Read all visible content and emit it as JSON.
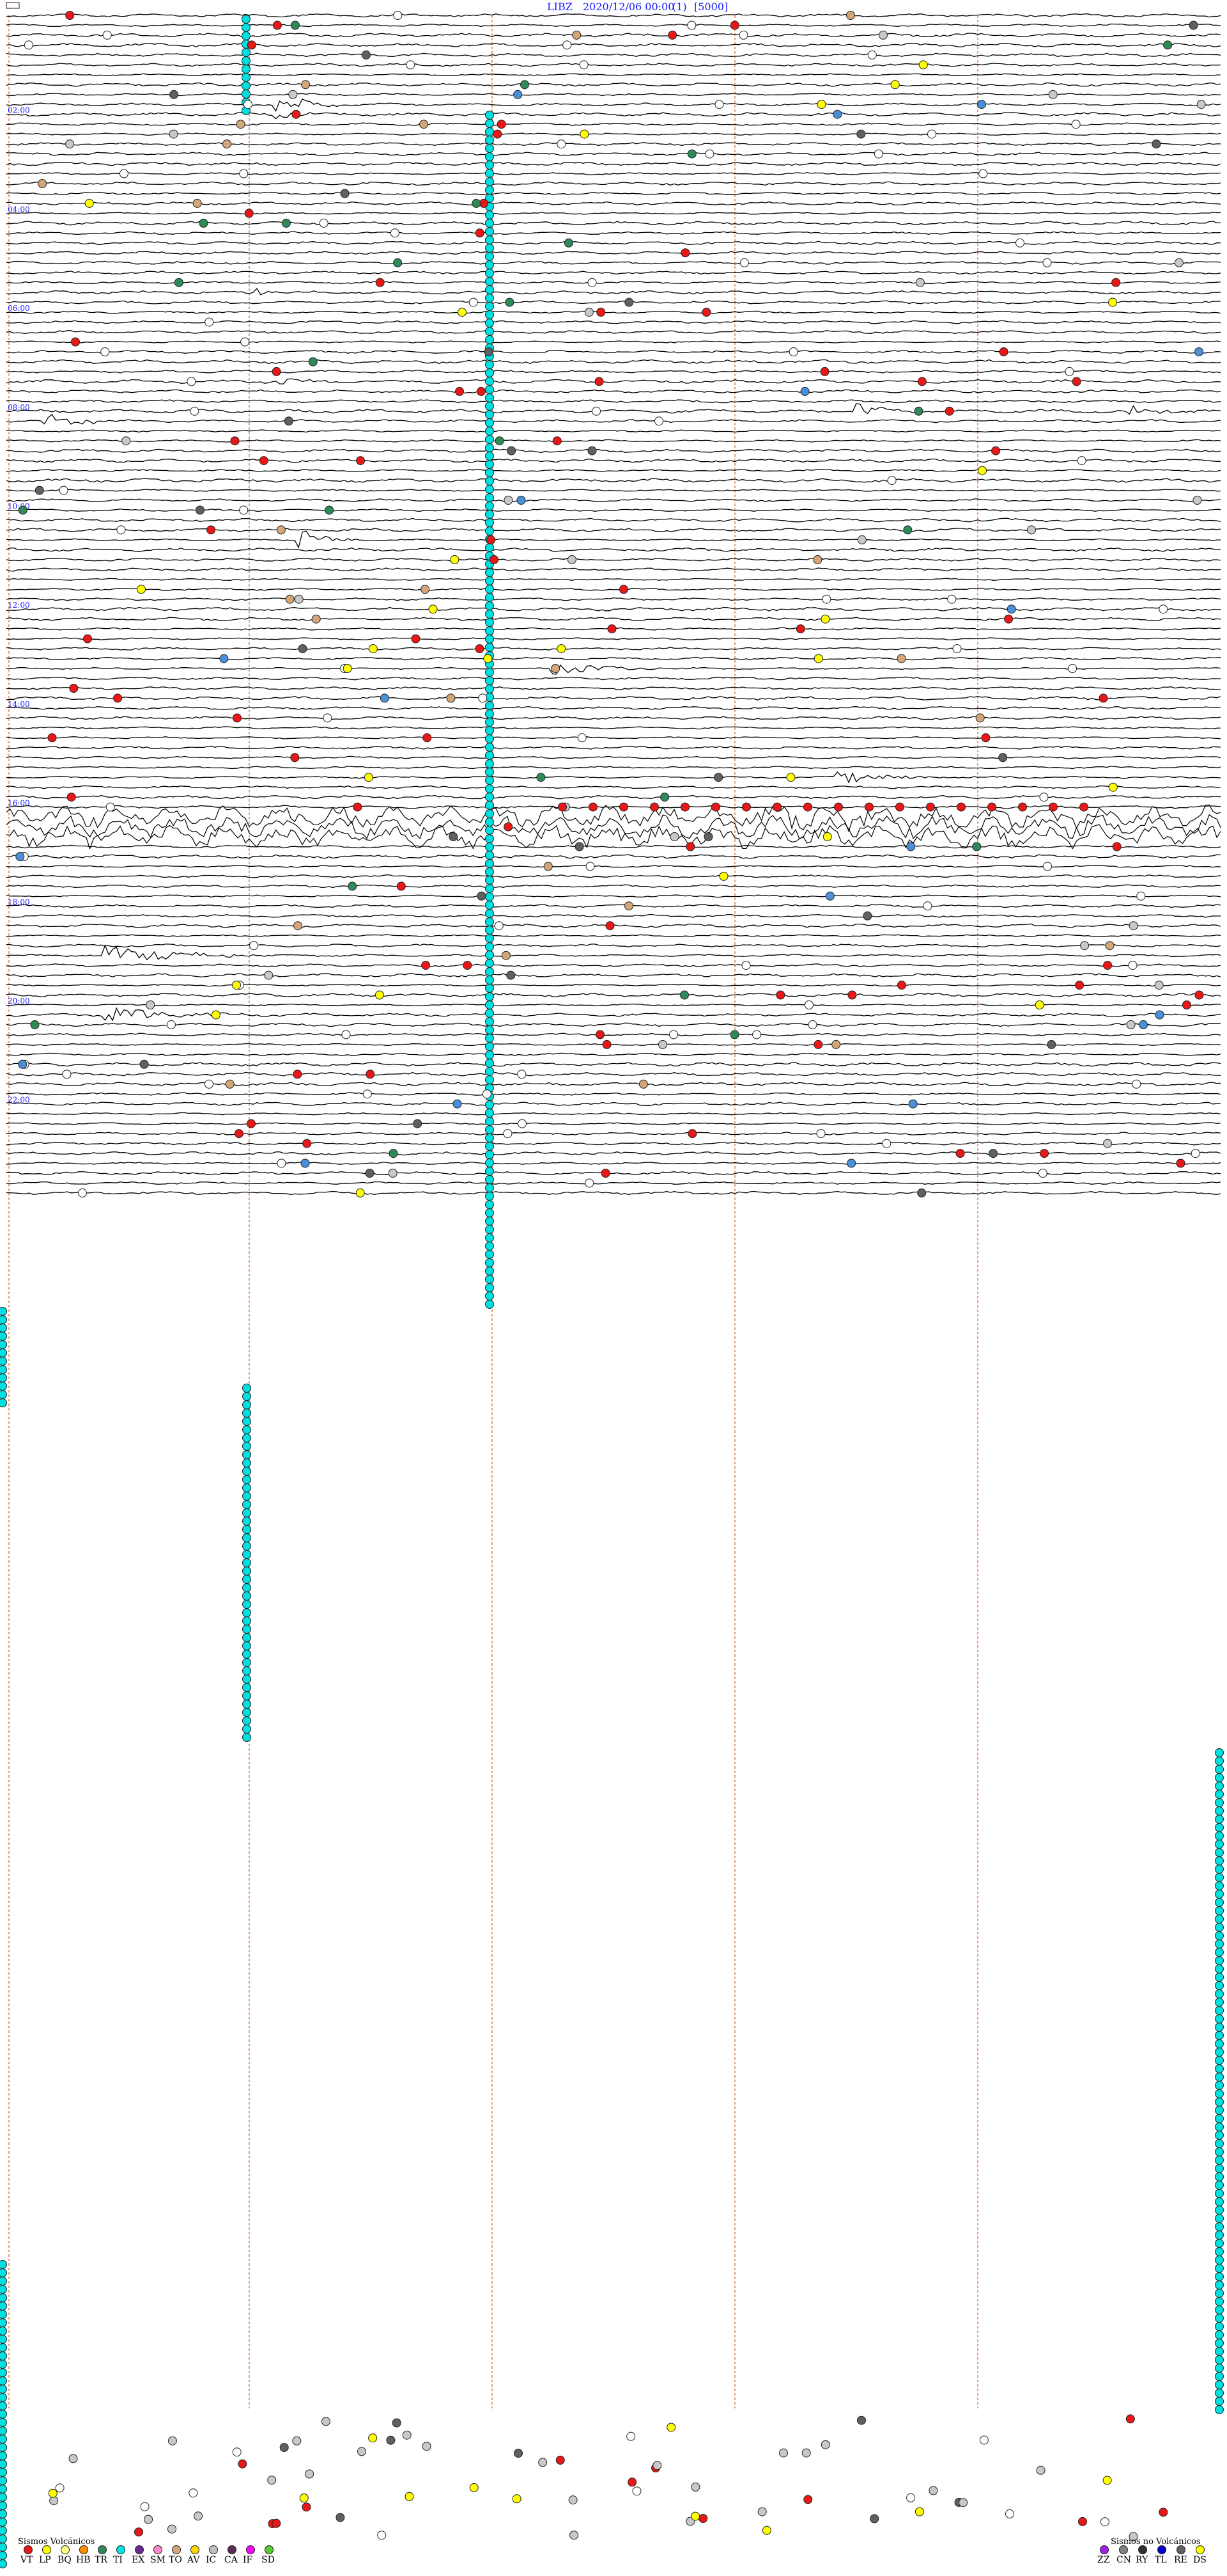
{
  "header": {
    "station": "LIBZ",
    "datetime": "2020/12/06 00:00",
    "channel": "(1)",
    "scale": "[5000]"
  },
  "chart_data": {
    "type": "helicorder",
    "start": "2020/12/06 00:00",
    "hours": 24,
    "traces_per_hour": 5,
    "time_labels": [
      "02:00",
      "04:00",
      "06:00",
      "08:00",
      "10:00",
      "12:00",
      "14:00",
      "16:00",
      "18:00",
      "20:00",
      "22:00"
    ],
    "event_bursts": [
      {
        "trace": 9,
        "pos": 0.22,
        "amp": 22,
        "len": 0.06
      },
      {
        "trace": 10,
        "pos": 0.22,
        "amp": 6,
        "len": 0.08
      },
      {
        "trace": 28,
        "pos": 0.2,
        "amp": 10,
        "len": 0.04
      },
      {
        "trace": 37,
        "pos": 0.22,
        "amp": 6,
        "len": 0.08
      },
      {
        "trace": 41,
        "pos": 0.03,
        "amp": 12,
        "len": 0.08
      },
      {
        "trace": 40,
        "pos": 0.7,
        "amp": 14,
        "len": 0.05
      },
      {
        "trace": 40,
        "pos": 0.92,
        "amp": 8,
        "len": 0.08
      },
      {
        "trace": 53,
        "pos": 0.24,
        "amp": 22,
        "len": 0.05
      },
      {
        "trace": 66,
        "pos": 0.45,
        "amp": 9,
        "len": 0.12
      },
      {
        "trace": 77,
        "pos": 0.68,
        "amp": 12,
        "len": 0.12
      },
      {
        "trace": 81,
        "pos": 0.64,
        "amp": 26,
        "len": 0.12
      },
      {
        "trace": 95,
        "pos": 0.08,
        "amp": 16,
        "len": 0.14
      },
      {
        "trace": 101,
        "pos": 0.08,
        "amp": 16,
        "len": 0.12
      },
      {
        "trace": 120,
        "pos": 0.64,
        "amp": 8,
        "len": 0.1
      },
      {
        "trace": 157,
        "pos": 0.86,
        "amp": 9,
        "len": 0.12
      },
      {
        "trace": 164,
        "pos": 0.85,
        "amp": 8,
        "len": 0.1
      },
      {
        "trace": 179,
        "pos": 0.42,
        "amp": 26,
        "len": 0.04
      }
    ],
    "noisy_traces": [
      81,
      82,
      83
    ],
    "legend_volcanic": {
      "title": "Sismos Volcánicos",
      "items": [
        {
          "label": "VT",
          "color": "#e81818"
        },
        {
          "label": "LP",
          "color": "#ffff00"
        },
        {
          "label": "BQ",
          "color": "#ffff88"
        },
        {
          "label": "HB",
          "color": "#ff8c00"
        },
        {
          "label": "TR",
          "color": "#2e8b57"
        },
        {
          "label": "TI",
          "color": "#00e5e5"
        },
        {
          "label": "EX",
          "color": "#6a2c91"
        },
        {
          "label": "SM",
          "color": "#ff88cc"
        },
        {
          "label": "TO",
          "color": "#d2a679"
        },
        {
          "label": "AV",
          "color": "#ffd700"
        },
        {
          "label": "IC",
          "color": "#c0c0c0"
        },
        {
          "label": "CA",
          "color": "#5a2d5a"
        },
        {
          "label": "IF",
          "color": "#ff00ff"
        },
        {
          "label": "SD",
          "color": "#55cc33"
        }
      ]
    },
    "legend_nonvolcanic": {
      "title": "Sismos no Volcánicos",
      "items": [
        {
          "label": "ZZ",
          "color": "#a020f0"
        },
        {
          "label": "CN",
          "color": "#808080"
        },
        {
          "label": "RY",
          "color": "#303030"
        },
        {
          "label": "TL",
          "color": "#0000cd"
        },
        {
          "label": "RE",
          "color": "#606060"
        },
        {
          "label": "DS",
          "color": "#ffff00"
        }
      ]
    },
    "marker_colors": {
      "red": "#e81818",
      "gray": "#c8c8c8",
      "white": "#ffffff",
      "cyan": "#00e0e0",
      "yellow": "#ffff00",
      "green": "#2e8b57",
      "blue": "#1a1acc",
      "lightblue": "#4a90d9",
      "dark": "#606060",
      "tan": "#d2a679",
      "purple": "#6a2c91",
      "orange": "#ff8c00"
    }
  }
}
